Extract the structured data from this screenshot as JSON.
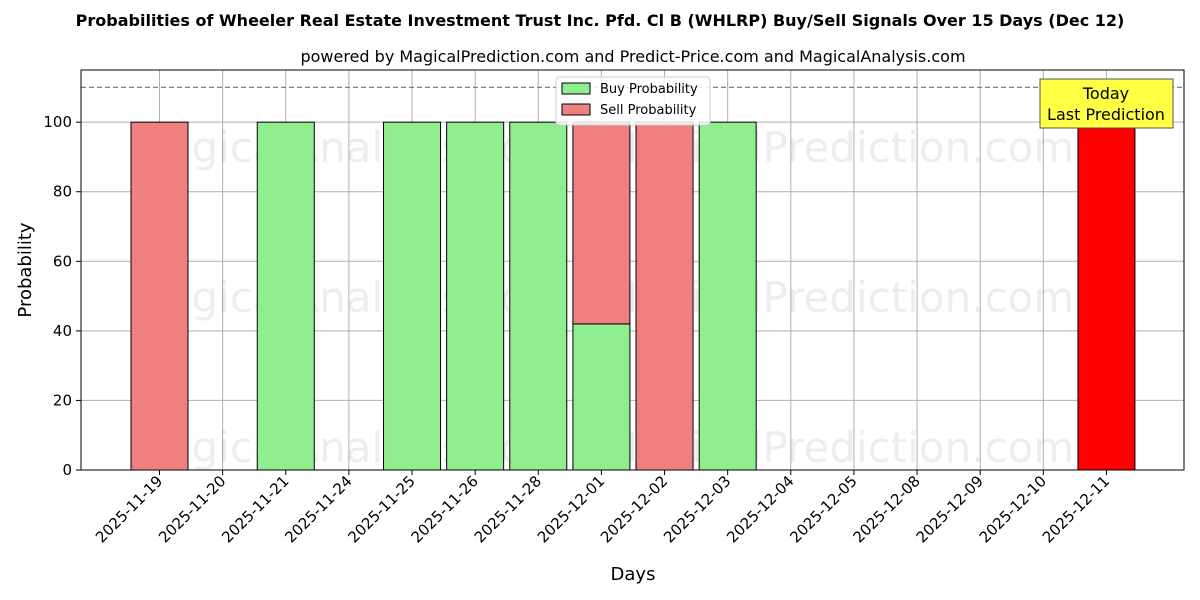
{
  "chart_data": {
    "type": "bar",
    "title": "Probabilities of Wheeler Real Estate Investment Trust Inc. Pfd. Cl B (WHLRP) Buy/Sell Signals Over 15 Days (Dec 12)",
    "subtitle": "powered by MagicalPrediction.com and Predict-Price.com and MagicalAnalysis.com",
    "xlabel": "Days",
    "ylabel": "Probability",
    "ylim": [
      0,
      115
    ],
    "yticks": [
      0,
      20,
      40,
      60,
      80,
      100
    ],
    "reference_line": 110,
    "grid": true,
    "legend_position": "top-center",
    "categories": [
      "2025-11-19",
      "2025-11-20",
      "2025-11-21",
      "2025-11-24",
      "2025-11-25",
      "2025-11-26",
      "2025-11-28",
      "2025-12-01",
      "2025-12-02",
      "2025-12-03",
      "2025-12-04",
      "2025-12-05",
      "2025-12-08",
      "2025-12-09",
      "2025-12-10",
      "2025-12-11"
    ],
    "series": [
      {
        "name": "Buy Probability",
        "color": "#90ee90",
        "values": [
          0,
          0,
          100,
          0,
          100,
          100,
          100,
          42,
          0,
          100,
          0,
          0,
          0,
          0,
          0,
          0
        ]
      },
      {
        "name": "Sell Probability",
        "color": "#f08080",
        "values": [
          100,
          0,
          0,
          0,
          0,
          0,
          0,
          58,
          100,
          0,
          0,
          0,
          0,
          0,
          0,
          100
        ]
      }
    ],
    "highlight": {
      "category": "2025-12-11",
      "color": "#ff0000"
    },
    "annotation": {
      "lines": [
        "Today",
        "Last Prediction"
      ],
      "box_color": "#ffff44"
    },
    "watermarks": [
      "MagicalAnalysis.com",
      "MagicalPrediction.com"
    ]
  }
}
